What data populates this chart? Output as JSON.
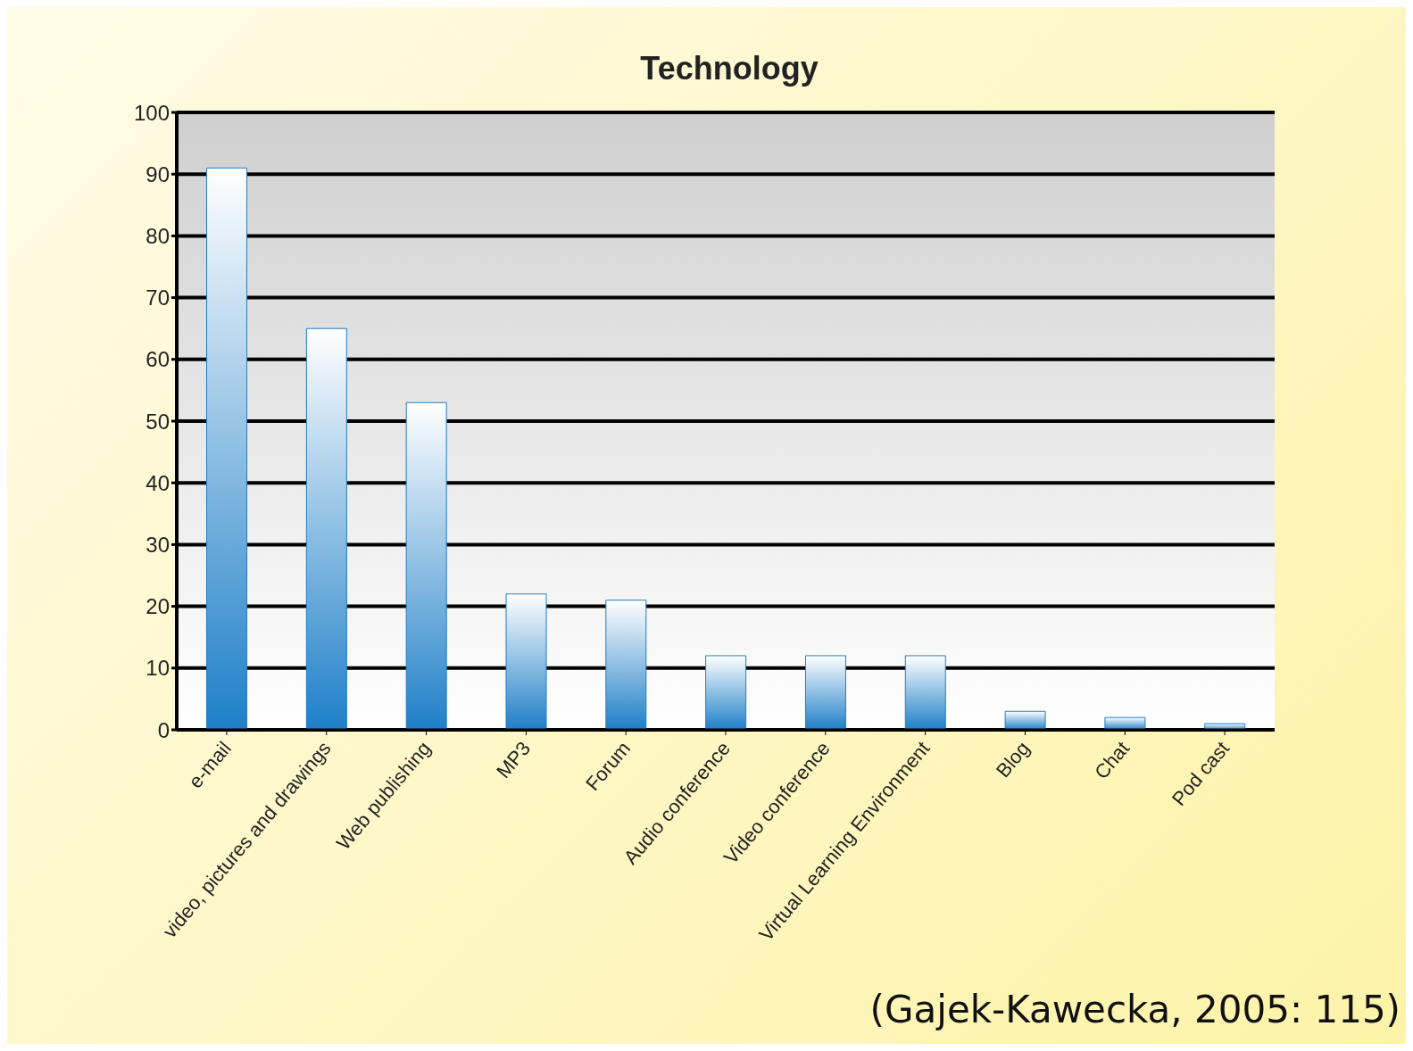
{
  "chart_data": {
    "type": "bar",
    "title": "Technology",
    "categories": [
      "e-mail",
      "video, pictures and drawings",
      "Web publishing",
      "MP3",
      "Forum",
      "Audio conference",
      "Video conference",
      "Virtual Learning Environment",
      "Blog",
      "Chat",
      "Pod cast"
    ],
    "values": [
      91,
      65,
      53,
      22,
      21,
      12,
      12,
      12,
      3,
      2,
      1
    ],
    "color": "#1e7fc8",
    "ylim": [
      0,
      100
    ],
    "yticks": [
      0,
      10,
      20,
      30,
      40,
      50,
      60,
      70,
      80,
      90,
      100
    ],
    "grid": "y",
    "annotations": [
      "(Gajek-Kawecka, 2005: 115)"
    ]
  }
}
